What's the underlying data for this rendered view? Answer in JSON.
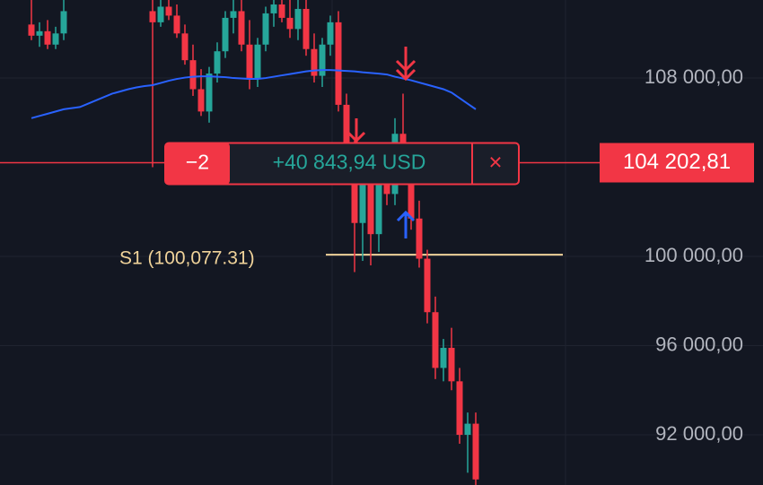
{
  "chart_data": {
    "type": "candlestick",
    "ylim": [
      89750,
      111500
    ],
    "yticks": [
      {
        "value": 92000,
        "label": "92 000,00"
      },
      {
        "value": 96000,
        "label": "96 000,00"
      },
      {
        "value": 100000,
        "label": "100 000,00"
      },
      {
        "value": 108000,
        "label": "108 000,00"
      }
    ],
    "grid": true,
    "up_color": "#26a69a",
    "down_color": "#f23645",
    "candles": [
      [
        110400,
        111500,
        109700,
        109900
      ],
      [
        109900,
        110500,
        109400,
        110100
      ],
      [
        110100,
        110600,
        109300,
        109500
      ],
      [
        109500,
        110300,
        109300,
        110000
      ],
      [
        110000,
        111500,
        109700,
        111000
      ],
      null,
      null,
      null,
      null,
      null,
      null,
      null,
      null,
      null,
      null,
      [
        111000,
        111500,
        104000,
        110500
      ],
      [
        110500,
        111500,
        110300,
        111200
      ],
      [
        111200,
        111500,
        110600,
        110800
      ],
      [
        110800,
        111300,
        109800,
        110000
      ],
      [
        110000,
        110400,
        108600,
        108800
      ],
      [
        108800,
        109500,
        107200,
        107500
      ],
      [
        107500,
        108400,
        106300,
        106500
      ],
      [
        106500,
        108500,
        106000,
        108200
      ],
      [
        108200,
        109600,
        107800,
        109200
      ],
      [
        109200,
        111000,
        108900,
        110700
      ],
      [
        110700,
        111500,
        110000,
        111000
      ],
      [
        111000,
        111500,
        109200,
        109500
      ],
      [
        109500,
        110600,
        107500,
        108000
      ],
      [
        108000,
        109800,
        107600,
        109500
      ],
      [
        109500,
        111200,
        109200,
        110900
      ],
      [
        110900,
        111500,
        110300,
        111300
      ],
      [
        111300,
        111500,
        110500,
        110700
      ],
      [
        110700,
        111500,
        109800,
        110200
      ],
      [
        110200,
        111500,
        109700,
        111100
      ],
      [
        111100,
        111500,
        109000,
        109300
      ],
      [
        109300,
        110000,
        107800,
        108100
      ],
      [
        108100,
        109800,
        107600,
        109500
      ],
      [
        109500,
        110800,
        109000,
        110500
      ],
      [
        110500,
        111000,
        106500,
        106800
      ],
      [
        106800,
        107300,
        104200,
        104600
      ],
      [
        104600,
        105200,
        99300,
        101500
      ],
      [
        101500,
        103800,
        99800,
        103200
      ],
      [
        103200,
        104000,
        99600,
        101000
      ],
      [
        101000,
        104500,
        100200,
        103800
      ],
      [
        103800,
        105000,
        102300,
        102800
      ],
      [
        102800,
        106200,
        102300,
        105500
      ],
      [
        105500,
        107300,
        103200,
        103500
      ],
      [
        103500,
        104200,
        101200,
        101700
      ],
      [
        101700,
        102500,
        99500,
        99900
      ],
      [
        99900,
        100300,
        97000,
        97500
      ],
      [
        97500,
        98200,
        94500,
        95000
      ],
      [
        95000,
        96300,
        94400,
        95900
      ],
      [
        95900,
        96800,
        94000,
        94400
      ],
      [
        94400,
        95000,
        91600,
        92000
      ],
      [
        92000,
        93000,
        90300,
        92500
      ],
      [
        92500,
        93000,
        89750,
        90000
      ]
    ],
    "moving_average": {
      "color": "#2962ff",
      "values": [
        106200,
        106300,
        106400,
        106500,
        106600,
        106650,
        106700,
        106850,
        107000,
        107150,
        107300,
        107400,
        107500,
        107580,
        107640,
        107680,
        107780,
        107880,
        107960,
        108020,
        108060,
        108080,
        108080,
        108060,
        108040,
        108000,
        107980,
        107960,
        107960,
        108000,
        108060,
        108120,
        108180,
        108240,
        108300,
        108340,
        108360,
        108360,
        108340,
        108320,
        108300,
        108260,
        108230,
        108200,
        108160,
        108060,
        107980,
        107900,
        107800,
        107700,
        107600,
        107500,
        107350,
        107100,
        106850,
        106600
      ]
    },
    "support": {
      "label": "S1 (100,077.31)",
      "value": 100077.31,
      "color": "#f0d39a"
    },
    "current_price": {
      "value": 104202.81,
      "label": "104 202,81"
    },
    "position": {
      "quantity": "−2",
      "pnl": "+40 843,94 USD",
      "close": "×"
    }
  }
}
